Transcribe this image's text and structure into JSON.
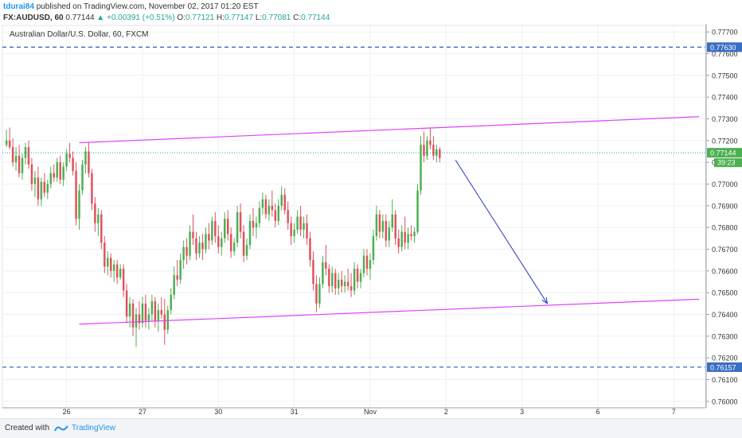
{
  "header": {
    "author": "tdurai84",
    "published_text": "published on TradingView.com, November 02, 2017 01:20 EST",
    "symbol_label": "FX:AUDUSD, 60",
    "last_price": "0.77144",
    "change": "+0.00391 (+0.51%)",
    "open_label": "O:",
    "open_value": "0.77121",
    "high_label": "H:",
    "high_value": "0.77147",
    "low_label": "L:",
    "low_value": "0.77081",
    "close_label": "C:",
    "close_value": "0.77144"
  },
  "footer": {
    "created_with": "Created with",
    "brand": "TradingView"
  },
  "colors": {
    "up": "#4caf50",
    "down": "#e0505c",
    "channel": "#e040fb",
    "arrow": "#2b37c8",
    "hline": "#3a6ec2",
    "price_line": "#26a69a",
    "axis_text": "#333333",
    "grid": "#eef0f3"
  },
  "chart_data": {
    "type": "candlestick",
    "title": "Australian Dollar/U.S. Dollar, 60, FXCM",
    "ylim": [
      0.7597,
      0.7773
    ],
    "y_ticks": [
      "0.77700",
      "0.77600",
      "0.77500",
      "0.77400",
      "0.77300",
      "0.77200",
      "0.77100",
      "0.77000",
      "0.76900",
      "0.76800",
      "0.76700",
      "0.76600",
      "0.76500",
      "0.76400",
      "0.76300",
      "0.76200",
      "0.76100",
      "0.76000"
    ],
    "x_ticks": [
      {
        "label": "26",
        "index": 19
      },
      {
        "label": "27",
        "index": 43
      },
      {
        "label": "30",
        "index": 67
      },
      {
        "label": "31",
        "index": 91
      },
      {
        "label": "Nov",
        "index": 115
      },
      {
        "label": "2",
        "index": 139
      },
      {
        "label": "3",
        "index": 163
      },
      {
        "label": "6",
        "index": 187
      },
      {
        "label": "7",
        "index": 211
      }
    ],
    "x_range": [
      -1.3,
      221
    ],
    "candles": [
      [
        0.7718,
        0.7725,
        0.7717,
        0.772
      ],
      [
        0.772,
        0.7726,
        0.7716,
        0.7717
      ],
      [
        0.7717,
        0.7721,
        0.7708,
        0.771
      ],
      [
        0.771,
        0.7717,
        0.7706,
        0.7713
      ],
      [
        0.7713,
        0.7718,
        0.7703,
        0.7705
      ],
      [
        0.7705,
        0.7714,
        0.7702,
        0.7712
      ],
      [
        0.7712,
        0.7719,
        0.7709,
        0.7717
      ],
      [
        0.7717,
        0.772,
        0.7707,
        0.7709
      ],
      [
        0.7709,
        0.7712,
        0.7697,
        0.77
      ],
      [
        0.77,
        0.7706,
        0.7694,
        0.7703
      ],
      [
        0.7703,
        0.7708,
        0.769,
        0.7693
      ],
      [
        0.7693,
        0.7703,
        0.769,
        0.7701
      ],
      [
        0.7701,
        0.7705,
        0.7694,
        0.7696
      ],
      [
        0.7696,
        0.7702,
        0.7693,
        0.77
      ],
      [
        0.77,
        0.7708,
        0.7698,
        0.7705
      ],
      [
        0.7705,
        0.7709,
        0.7701,
        0.7703
      ],
      [
        0.7703,
        0.7712,
        0.7701,
        0.771
      ],
      [
        0.771,
        0.7713,
        0.77,
        0.7702
      ],
      [
        0.7702,
        0.771,
        0.7699,
        0.7708
      ],
      [
        0.7708,
        0.7716,
        0.7706,
        0.7714
      ],
      [
        0.7714,
        0.7719,
        0.771,
        0.7712
      ],
      [
        0.7712,
        0.7715,
        0.7704,
        0.7706
      ],
      [
        0.7706,
        0.771,
        0.7681,
        0.7684
      ],
      [
        0.7684,
        0.77,
        0.7679,
        0.7697
      ],
      [
        0.7697,
        0.7711,
        0.7695,
        0.7709
      ],
      [
        0.7709,
        0.7717,
        0.7705,
        0.7715
      ],
      [
        0.7715,
        0.7719,
        0.7703,
        0.7705
      ],
      [
        0.7705,
        0.7707,
        0.7688,
        0.7691
      ],
      [
        0.7691,
        0.7694,
        0.7678,
        0.7682
      ],
      [
        0.7682,
        0.7689,
        0.7676,
        0.7686
      ],
      [
        0.7686,
        0.7688,
        0.767,
        0.7673
      ],
      [
        0.7673,
        0.7676,
        0.7659,
        0.7662
      ],
      [
        0.7662,
        0.7669,
        0.7658,
        0.7666
      ],
      [
        0.7666,
        0.7668,
        0.7657,
        0.766
      ],
      [
        0.766,
        0.7665,
        0.7655,
        0.7663
      ],
      [
        0.7663,
        0.7665,
        0.7654,
        0.7657
      ],
      [
        0.7657,
        0.7663,
        0.7656,
        0.7661
      ],
      [
        0.7661,
        0.7663,
        0.7648,
        0.7651
      ],
      [
        0.7651,
        0.7654,
        0.7636,
        0.7639
      ],
      [
        0.7639,
        0.7648,
        0.7634,
        0.7645
      ],
      [
        0.7645,
        0.7647,
        0.763,
        0.7634
      ],
      [
        0.7634,
        0.7643,
        0.7625,
        0.764
      ],
      [
        0.764,
        0.7646,
        0.7633,
        0.7636
      ],
      [
        0.7636,
        0.7648,
        0.7634,
        0.7645
      ],
      [
        0.7645,
        0.7649,
        0.7634,
        0.7637
      ],
      [
        0.7637,
        0.7643,
        0.7633,
        0.764
      ],
      [
        0.764,
        0.7649,
        0.7637,
        0.7646
      ],
      [
        0.7646,
        0.7648,
        0.7634,
        0.7637
      ],
      [
        0.7637,
        0.7645,
        0.7632,
        0.7642
      ],
      [
        0.7642,
        0.7648,
        0.7638,
        0.764
      ],
      [
        0.764,
        0.7647,
        0.7626,
        0.7633
      ],
      [
        0.7633,
        0.7644,
        0.7631,
        0.7642
      ],
      [
        0.7642,
        0.7652,
        0.764,
        0.7649
      ],
      [
        0.7649,
        0.7662,
        0.7647,
        0.7658
      ],
      [
        0.7658,
        0.7665,
        0.7653,
        0.7656
      ],
      [
        0.7656,
        0.7668,
        0.7654,
        0.7665
      ],
      [
        0.7665,
        0.7674,
        0.7661,
        0.7671
      ],
      [
        0.7671,
        0.7675,
        0.7663,
        0.7667
      ],
      [
        0.7667,
        0.7681,
        0.7665,
        0.7678
      ],
      [
        0.7678,
        0.7686,
        0.7672,
        0.7675
      ],
      [
        0.7675,
        0.7678,
        0.7665,
        0.7668
      ],
      [
        0.7668,
        0.7676,
        0.7666,
        0.7673
      ],
      [
        0.7673,
        0.7677,
        0.7665,
        0.767
      ],
      [
        0.767,
        0.768,
        0.7668,
        0.7677
      ],
      [
        0.7677,
        0.7682,
        0.767,
        0.7674
      ],
      [
        0.7674,
        0.7685,
        0.7672,
        0.7683
      ],
      [
        0.7683,
        0.7687,
        0.7673,
        0.7676
      ],
      [
        0.7676,
        0.7681,
        0.7668,
        0.7671
      ],
      [
        0.7671,
        0.7678,
        0.7667,
        0.7675
      ],
      [
        0.7675,
        0.7687,
        0.7673,
        0.7684
      ],
      [
        0.7684,
        0.7688,
        0.7674,
        0.7677
      ],
      [
        0.7677,
        0.768,
        0.7666,
        0.7669
      ],
      [
        0.7669,
        0.7675,
        0.7667,
        0.7673
      ],
      [
        0.7673,
        0.769,
        0.7671,
        0.7687
      ],
      [
        0.7687,
        0.7691,
        0.7675,
        0.7678
      ],
      [
        0.7678,
        0.7681,
        0.7664,
        0.7667
      ],
      [
        0.7667,
        0.7675,
        0.7665,
        0.7672
      ],
      [
        0.7672,
        0.7686,
        0.767,
        0.7683
      ],
      [
        0.7683,
        0.7689,
        0.7676,
        0.768
      ],
      [
        0.768,
        0.7685,
        0.7675,
        0.7682
      ],
      [
        0.7682,
        0.7692,
        0.768,
        0.7689
      ],
      [
        0.7689,
        0.7696,
        0.7686,
        0.7693
      ],
      [
        0.7693,
        0.7695,
        0.7684,
        0.7686
      ],
      [
        0.7686,
        0.7693,
        0.7683,
        0.769
      ],
      [
        0.769,
        0.7697,
        0.7685,
        0.7688
      ],
      [
        0.7688,
        0.7691,
        0.768,
        0.7683
      ],
      [
        0.7683,
        0.7693,
        0.7681,
        0.769
      ],
      [
        0.769,
        0.7699,
        0.7688,
        0.7695
      ],
      [
        0.7695,
        0.7698,
        0.7686,
        0.7688
      ],
      [
        0.7688,
        0.7692,
        0.7679,
        0.7682
      ],
      [
        0.7682,
        0.7685,
        0.7672,
        0.7676
      ],
      [
        0.7676,
        0.7682,
        0.7673,
        0.7679
      ],
      [
        0.7679,
        0.7688,
        0.7677,
        0.7685
      ],
      [
        0.7685,
        0.769,
        0.7676,
        0.7679
      ],
      [
        0.7679,
        0.7685,
        0.7675,
        0.7682
      ],
      [
        0.7682,
        0.7686,
        0.7672,
        0.7675
      ],
      [
        0.7675,
        0.7678,
        0.7662,
        0.7665
      ],
      [
        0.7665,
        0.7669,
        0.7651,
        0.7654
      ],
      [
        0.7654,
        0.7658,
        0.7641,
        0.7645
      ],
      [
        0.7645,
        0.7657,
        0.7643,
        0.7654
      ],
      [
        0.7654,
        0.7667,
        0.7652,
        0.7664
      ],
      [
        0.7664,
        0.7672,
        0.7658,
        0.7661
      ],
      [
        0.7661,
        0.7663,
        0.765,
        0.7653
      ],
      [
        0.7653,
        0.7662,
        0.765,
        0.7659
      ],
      [
        0.7659,
        0.7661,
        0.7649,
        0.7652
      ],
      [
        0.7652,
        0.7659,
        0.7649,
        0.7656
      ],
      [
        0.7656,
        0.766,
        0.765,
        0.7653
      ],
      [
        0.7653,
        0.7658,
        0.765,
        0.7655
      ],
      [
        0.7655,
        0.7661,
        0.7651,
        0.7653
      ],
      [
        0.7653,
        0.7659,
        0.7648,
        0.7651
      ],
      [
        0.7651,
        0.7664,
        0.7649,
        0.7661
      ],
      [
        0.7661,
        0.7663,
        0.7652,
        0.7655
      ],
      [
        0.7655,
        0.7661,
        0.7652,
        0.7659
      ],
      [
        0.7659,
        0.767,
        0.7657,
        0.7667
      ],
      [
        0.7667,
        0.767,
        0.7658,
        0.7661
      ],
      [
        0.7661,
        0.7668,
        0.7656,
        0.7665
      ],
      [
        0.7665,
        0.7679,
        0.7663,
        0.7676
      ],
      [
        0.7676,
        0.769,
        0.7674,
        0.7686
      ],
      [
        0.7686,
        0.7688,
        0.7675,
        0.7678
      ],
      [
        0.7678,
        0.7686,
        0.7675,
        0.7683
      ],
      [
        0.7683,
        0.7686,
        0.7671,
        0.7674
      ],
      [
        0.7674,
        0.7683,
        0.7671,
        0.768
      ],
      [
        0.768,
        0.7693,
        0.7678,
        0.7686
      ],
      [
        0.7686,
        0.7688,
        0.7672,
        0.7675
      ],
      [
        0.7675,
        0.7679,
        0.7668,
        0.7671
      ],
      [
        0.7671,
        0.7681,
        0.7669,
        0.7678
      ],
      [
        0.7678,
        0.7685,
        0.767,
        0.7673
      ],
      [
        0.7673,
        0.768,
        0.767,
        0.7677
      ],
      [
        0.7677,
        0.7681,
        0.7674,
        0.7676
      ],
      [
        0.7676,
        0.768,
        0.7673,
        0.7678
      ],
      [
        0.7678,
        0.77,
        0.7677,
        0.7697
      ],
      [
        0.7697,
        0.7722,
        0.7695,
        0.7718
      ],
      [
        0.7718,
        0.7724,
        0.771,
        0.7713
      ],
      [
        0.7713,
        0.7722,
        0.7711,
        0.772
      ],
      [
        0.772,
        0.7726,
        0.7716,
        0.7718
      ],
      [
        0.7718,
        0.7722,
        0.7711,
        0.7713
      ],
      [
        0.7713,
        0.7718,
        0.771,
        0.7716
      ],
      [
        0.7716,
        0.7717,
        0.771,
        0.7712
      ]
    ],
    "last_price": 0.77144,
    "last_price_label": "0.77144",
    "countdown_label": "39:23",
    "horizontal_levels": [
      {
        "value": 0.7763,
        "label": "0.77630"
      },
      {
        "value": 0.76157,
        "label": "0.76157"
      }
    ],
    "channel_lines": [
      {
        "from": [
          23,
          0.7719
        ],
        "to": [
          219,
          0.7731
        ]
      },
      {
        "from": [
          23,
          0.76355
        ],
        "to": [
          219,
          0.7647
        ]
      }
    ],
    "arrow": {
      "from": [
        142,
        0.7711
      ],
      "to": [
        171,
        0.7645
      ]
    }
  }
}
